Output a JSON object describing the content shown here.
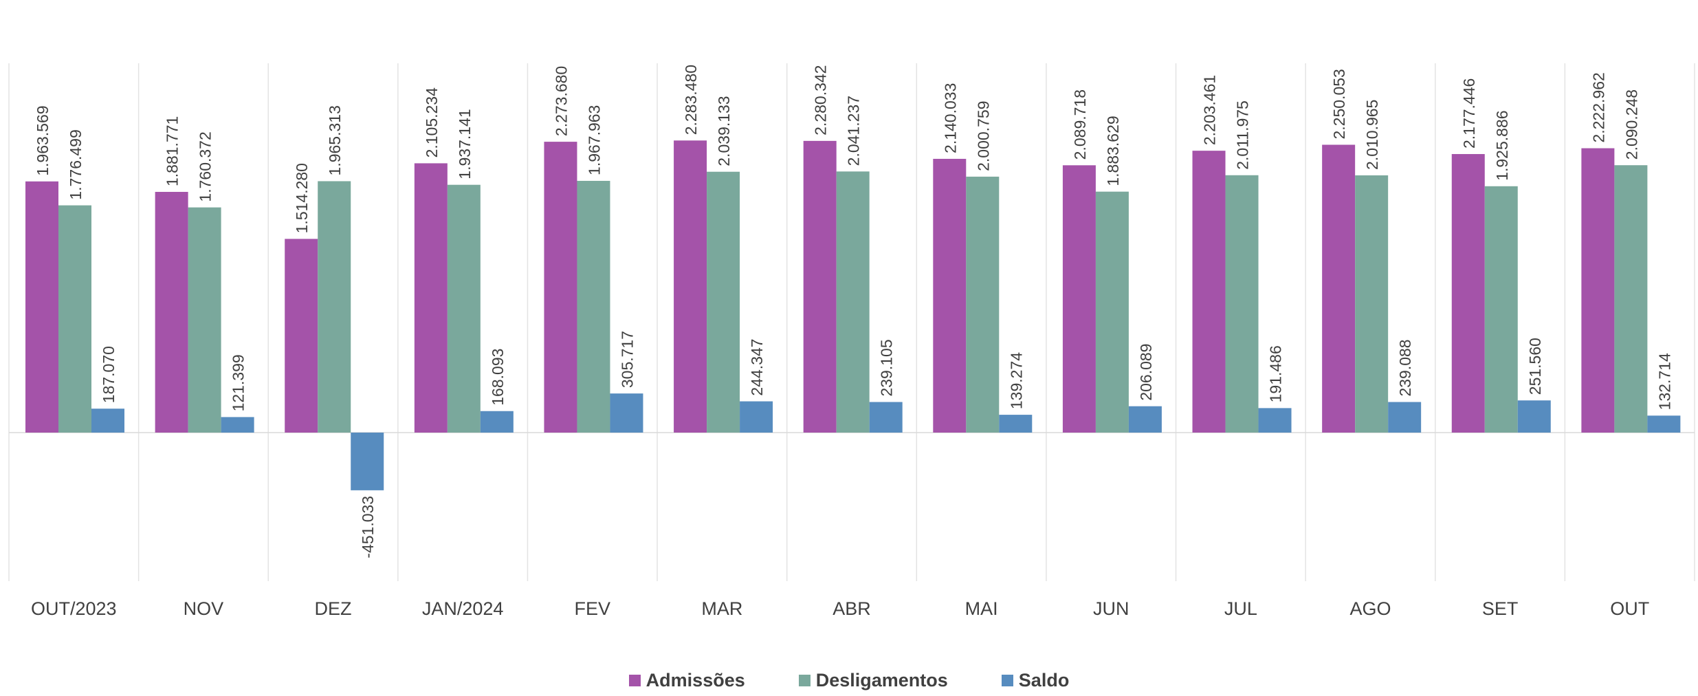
{
  "chart_data": {
    "type": "bar",
    "categories": [
      "OUT/2023",
      "NOV",
      "DEZ",
      "JAN/2024",
      "FEV",
      "MAR",
      "ABR",
      "MAI",
      "JUN",
      "JUL",
      "AGO",
      "SET",
      "OUT"
    ],
    "series": [
      {
        "name": "Admissões",
        "color": "#a453a9",
        "values": [
          1963569,
          1881771,
          1514280,
          2105234,
          2273680,
          2283480,
          2280342,
          2140033,
          2089718,
          2203461,
          2250053,
          2177446,
          2222962
        ],
        "labels": [
          "1.963.569",
          "1.881.771",
          "1.514.280",
          "2.105.234",
          "2.273.680",
          "2.283.480",
          "2.280.342",
          "2.140.033",
          "2.089.718",
          "2.203.461",
          "2.250.053",
          "2.177.446",
          "2.222.962"
        ]
      },
      {
        "name": "Desligamentos",
        "color": "#7aa89c",
        "values": [
          1776499,
          1760372,
          1965313,
          1937141,
          1967963,
          2039133,
          2041237,
          2000759,
          1883629,
          2011975,
          2010965,
          1925886,
          2090248
        ],
        "labels": [
          "1.776.499",
          "1.760.372",
          "1.965.313",
          "1.937.141",
          "1.967.963",
          "2.039.133",
          "2.041.237",
          "2.000.759",
          "1.883.629",
          "2.011.975",
          "2.010.965",
          "1.925.886",
          "2.090.248"
        ]
      },
      {
        "name": "Saldo",
        "color": "#578cbf",
        "values": [
          187070,
          121399,
          -451033,
          168093,
          305717,
          244347,
          239105,
          139274,
          206089,
          191486,
          239088,
          251560,
          132714
        ],
        "labels": [
          "187.070",
          "121.399",
          "-451.033",
          "168.093",
          "305.717",
          "244.347",
          "239.105",
          "139.274",
          "206.089",
          "191.486",
          "239.088",
          "251.560",
          "132.714"
        ]
      }
    ],
    "legend_position": "bottom",
    "grid": "vertical category separators",
    "y_axis_visible": false
  }
}
